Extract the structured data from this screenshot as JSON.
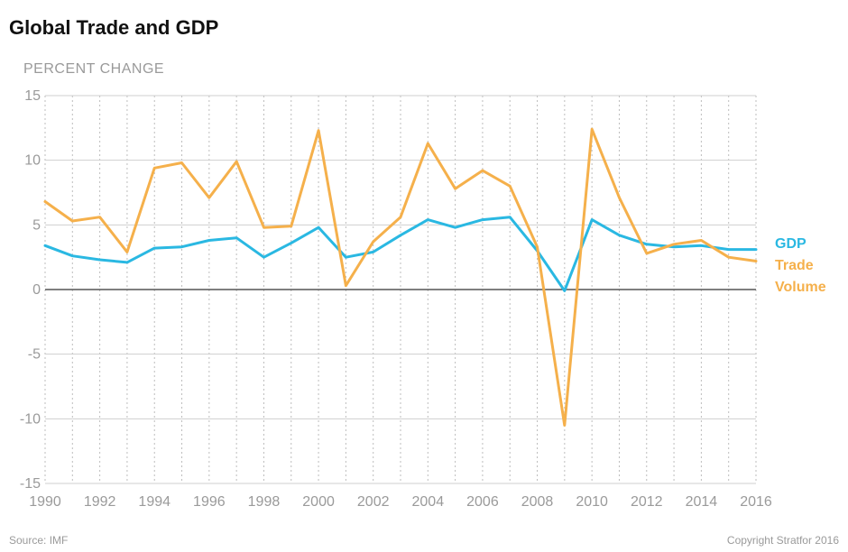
{
  "title": "Global Trade and GDP",
  "footer": {
    "source": "Source: IMF",
    "copyright": "Copyright Stratfor 2016"
  },
  "chart_data": {
    "type": "line",
    "ylabel": "PERCENT CHANGE",
    "xlabel": "",
    "ylim": [
      -15,
      15
    ],
    "xlim": [
      1990,
      2016
    ],
    "y_ticks": [
      15,
      10,
      5,
      0,
      -5,
      -10,
      -15
    ],
    "x_ticks": [
      1990,
      1992,
      1994,
      1996,
      1998,
      2000,
      2002,
      2004,
      2006,
      2008,
      2010,
      2012,
      2014,
      2016
    ],
    "grid": "horizontal solid, vertical dotted per year",
    "legend": "right",
    "x": [
      1990,
      1991,
      1992,
      1993,
      1994,
      1995,
      1996,
      1997,
      1998,
      1999,
      2000,
      2001,
      2002,
      2003,
      2004,
      2005,
      2006,
      2007,
      2008,
      2009,
      2010,
      2011,
      2012,
      2013,
      2014,
      2015,
      2016
    ],
    "series": [
      {
        "name": "GDP",
        "color": "#2ab8e2",
        "values": [
          3.4,
          2.6,
          2.3,
          2.1,
          3.2,
          3.3,
          3.8,
          4.0,
          2.5,
          3.6,
          4.8,
          2.5,
          2.9,
          4.2,
          5.4,
          4.8,
          5.4,
          5.6,
          3.0,
          -0.1,
          5.4,
          4.2,
          3.5,
          3.3,
          3.4,
          3.1,
          3.1
        ]
      },
      {
        "name": "Trade Volume",
        "color": "#f5b04b",
        "values": [
          6.8,
          5.3,
          5.6,
          2.9,
          9.4,
          9.8,
          7.1,
          9.9,
          4.8,
          4.9,
          12.3,
          0.3,
          3.7,
          5.6,
          11.3,
          7.8,
          9.2,
          8.0,
          3.3,
          -10.5,
          12.4,
          7.1,
          2.8,
          3.5,
          3.8,
          2.5,
          2.2
        ]
      }
    ],
    "legend_lines": [
      "GDP",
      "Trade",
      "Volume"
    ]
  }
}
